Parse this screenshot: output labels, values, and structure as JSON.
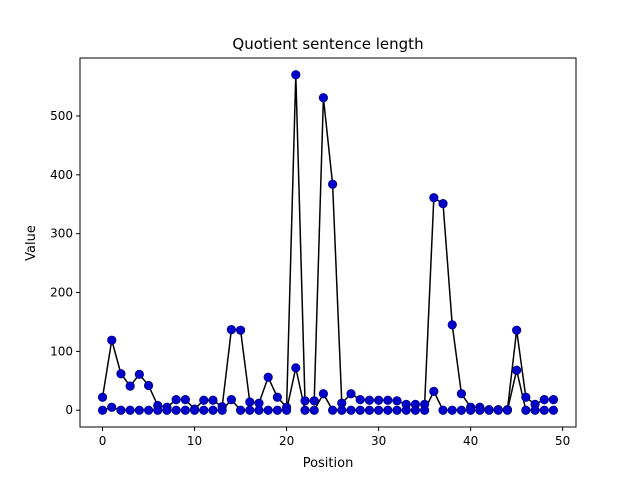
{
  "chart_data": {
    "type": "line",
    "title": "Quotient sentence length",
    "xlabel": "Position",
    "ylabel": "Value",
    "xlim": [
      -2.45,
      51.45
    ],
    "ylim": [
      -28.5,
      598.5
    ],
    "xticks": [
      0,
      10,
      20,
      30,
      40,
      50
    ],
    "yticks": [
      0,
      100,
      200,
      300,
      400,
      500
    ],
    "grid": false,
    "legend": "none",
    "line_color": "#000000",
    "marker_color": "#0000cc",
    "marker_edge_color": "#000080",
    "series": [
      {
        "x": [
          0,
          1,
          2,
          3,
          4,
          5,
          6,
          7,
          8,
          9,
          10,
          11,
          12,
          13,
          14,
          15,
          16,
          17,
          18,
          19,
          20,
          21,
          22,
          23,
          24,
          25,
          26,
          27,
          28,
          29,
          30,
          31,
          32,
          33,
          34,
          35,
          36,
          37,
          38,
          39,
          40,
          41,
          42,
          43,
          44,
          45,
          46,
          47,
          48,
          49
        ],
        "values": [
          22,
          119,
          62,
          41,
          61,
          42,
          8,
          5,
          18,
          18,
          2,
          17,
          17,
          6,
          137,
          136,
          14,
          12,
          56,
          22,
          5,
          570,
          16,
          16,
          531,
          384,
          12,
          28,
          18,
          17,
          17,
          17,
          16,
          10,
          10,
          10,
          361,
          351,
          145,
          28,
          5,
          5,
          1,
          1,
          1,
          136,
          22,
          10,
          18,
          18
        ]
      },
      {
        "x": [
          0,
          1,
          2,
          3,
          4,
          5,
          6,
          7,
          8,
          9,
          10,
          11,
          12,
          13,
          14,
          15,
          16,
          17,
          18,
          19,
          20,
          21,
          22,
          23,
          24,
          25,
          26,
          27,
          28,
          29,
          30,
          31,
          32,
          33,
          34,
          35,
          36,
          37,
          38,
          39,
          40,
          41,
          42,
          43,
          44,
          45,
          46,
          47,
          48,
          49
        ],
        "values": [
          0,
          5,
          0,
          0,
          0,
          0,
          0,
          0,
          0,
          0,
          0,
          0,
          0,
          0,
          18,
          0,
          0,
          0,
          0,
          0,
          0,
          72,
          0,
          0,
          28,
          0,
          0,
          0,
          0,
          0,
          0,
          0,
          0,
          0,
          0,
          0,
          32,
          0,
          0,
          0,
          0,
          0,
          0,
          0,
          0,
          68,
          0,
          0,
          0,
          0
        ]
      }
    ]
  }
}
